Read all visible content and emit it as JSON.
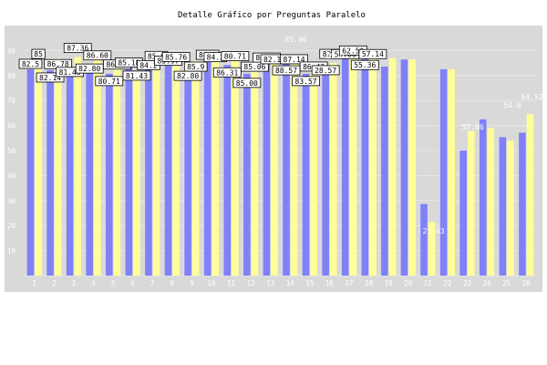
{
  "chart_data": {
    "type": "bar",
    "title": "Detalle Gráfico por Preguntas Paralelo",
    "xlabel": "",
    "ylabel": "",
    "ylim": [
      0,
      100
    ],
    "y_ticks": [
      10,
      20,
      30,
      40,
      50,
      60,
      70,
      80,
      90
    ],
    "grid": true,
    "legend": "none",
    "categories": [
      "1",
      "2",
      "3",
      "4",
      "5",
      "6",
      "7",
      "8",
      "9",
      "10",
      "11",
      "12",
      "13",
      "14",
      "15",
      "16",
      "17",
      "18",
      "19",
      "20",
      "21",
      "22",
      "23",
      "24",
      "25",
      "26"
    ],
    "series": [
      {
        "values": [
          82.5,
          82.14,
          81.43,
          82.8,
          80.71,
          85.18,
          84.2,
          85.9,
          82.8,
          86.1,
          84.2,
          80.71,
          85.0,
          85.0,
          80.71,
          82.14,
          88.57,
          87.14,
          83.57,
          86.43,
          28.57,
          82.51,
          50.0,
          62.5,
          55.36,
          57.14
        ]
      },
      {
        "values": [
          85.0,
          86.78,
          87.36,
          86.6,
          86.6,
          81.43,
          84.2,
          85.97,
          85.76,
          85.9,
          86.31,
          85.0,
          85.06,
          85.06,
          82.14,
          85.0,
          88.57,
          87.14,
          87.0,
          86.43,
          21.43,
          82.51,
          57.86,
          59.0,
          54.0,
          64.52
        ]
      }
    ],
    "colors": {
      "plot_bg": "#d9d9d9",
      "series_a": "#8080f8",
      "series_b": "#ffff99",
      "grid": "#e8e8e8",
      "tick_text": "#ffffff",
      "label_box": "#ffffff"
    },
    "boxed_labels": [
      "82.5",
      "85",
      "82.14",
      "86.78",
      "81.43",
      "87.36",
      "82.80",
      "86.60",
      "80.71",
      "86.60",
      "85.18",
      "81.43",
      "84.2",
      "85.9",
      "85.97",
      "85.76",
      "82.80",
      "85.9",
      "86.1",
      "84.2",
      "86.31",
      "80.71",
      "85.00",
      "85.06",
      "80.71",
      "82.14",
      "88.57",
      "87.14",
      "83.57",
      "86.43",
      "28.57",
      "82.51",
      "50.00",
      "62.50",
      "55.36",
      "57.14"
    ],
    "plain_labels": [
      "85.06",
      "85.0",
      "57.86",
      "54.0",
      "64.52",
      "21.43"
    ]
  }
}
